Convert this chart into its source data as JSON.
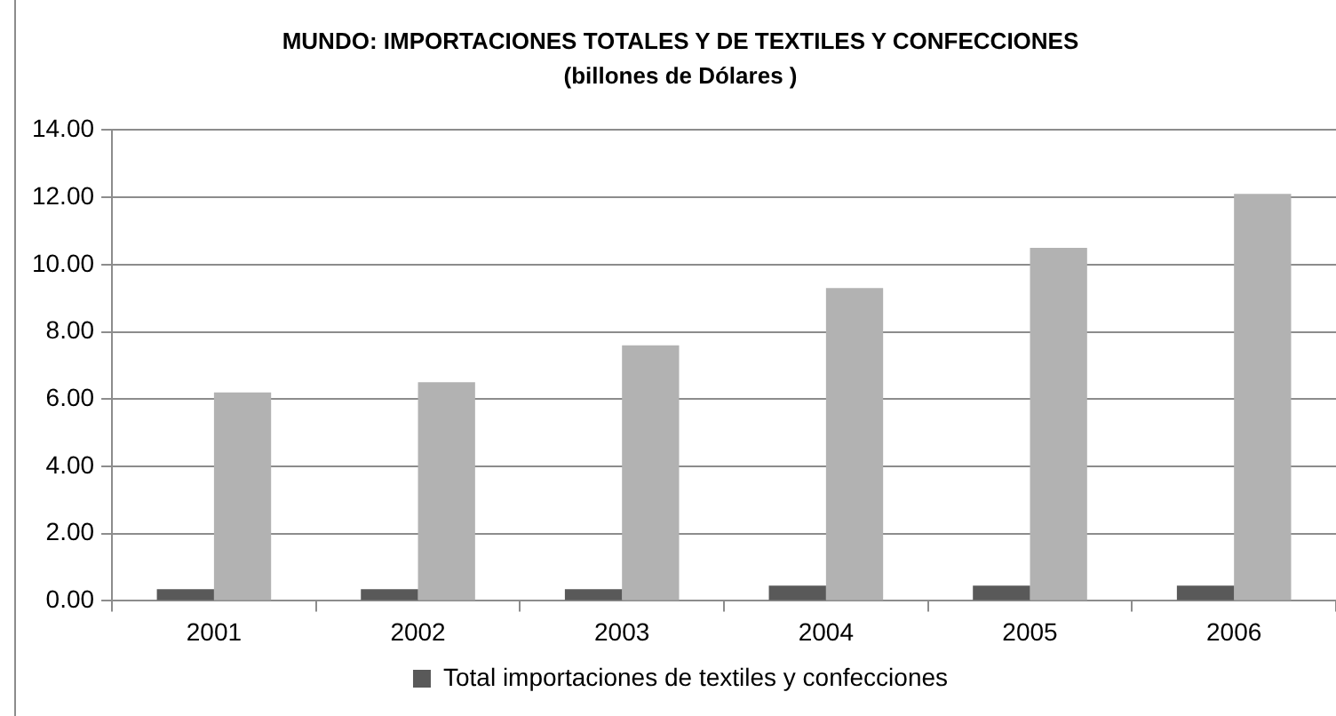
{
  "chart_data": {
    "type": "bar",
    "title": "MUNDO: IMPORTACIONES TOTALES Y DE TEXTILES Y CONFECCIONES",
    "subtitle": "(billones de Dólares )",
    "categories": [
      "2001",
      "2002",
      "2003",
      "2004",
      "2005",
      "2006"
    ],
    "series": [
      {
        "name": "Total importaciones de textiles y confecciones",
        "color": "#595959",
        "values": [
          0.35,
          0.35,
          0.35,
          0.45,
          0.45,
          0.45
        ]
      },
      {
        "color": "#b2b2b2",
        "values": [
          6.2,
          6.5,
          7.6,
          9.3,
          10.5,
          12.1
        ]
      }
    ],
    "ylim": [
      0,
      14
    ],
    "yticks": [
      {
        "value": 0,
        "label": "0.00"
      },
      {
        "value": 2,
        "label": "2.00"
      },
      {
        "value": 4,
        "label": "4.00"
      },
      {
        "value": 6,
        "label": "6.00"
      },
      {
        "value": 8,
        "label": "8.00"
      },
      {
        "value": 10,
        "label": "10.00"
      },
      {
        "value": 12,
        "label": "12.00"
      },
      {
        "value": 14,
        "label": "14.00"
      }
    ],
    "grid": "y",
    "legend": "bottom"
  }
}
